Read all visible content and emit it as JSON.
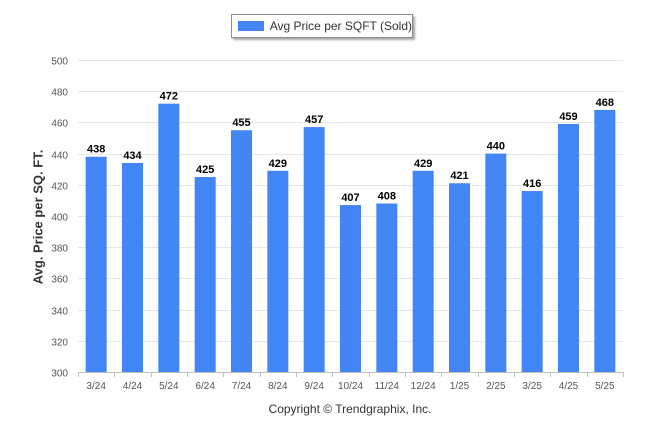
{
  "colors": {
    "bar": "#4285f4",
    "grid": "#e6e6e6",
    "axis": "#c0c0c0",
    "tick_text": "#555555",
    "label_text": "#000000"
  },
  "footer": {
    "copyright": "Copyright © Trendgraphix, Inc."
  },
  "chart_data": {
    "type": "bar",
    "categories": [
      "3/24",
      "4/24",
      "5/24",
      "6/24",
      "7/24",
      "8/24",
      "9/24",
      "10/24",
      "11/24",
      "12/24",
      "1/25",
      "2/25",
      "3/25",
      "4/25",
      "5/25"
    ],
    "series": [
      {
        "name": "Avg Price per SQFT (Sold)",
        "values": [
          438,
          434,
          472,
          425,
          455,
          429,
          457,
          407,
          408,
          429,
          421,
          440,
          416,
          459,
          468
        ]
      }
    ],
    "ylabel": "Avg. Price per SQ. FT.",
    "xlabel": "",
    "ylim": [
      300,
      500
    ],
    "yticks": [
      300,
      320,
      340,
      360,
      380,
      400,
      420,
      440,
      460,
      480,
      500
    ],
    "data_labels": true,
    "grid": true,
    "legend_position": "top-center"
  }
}
